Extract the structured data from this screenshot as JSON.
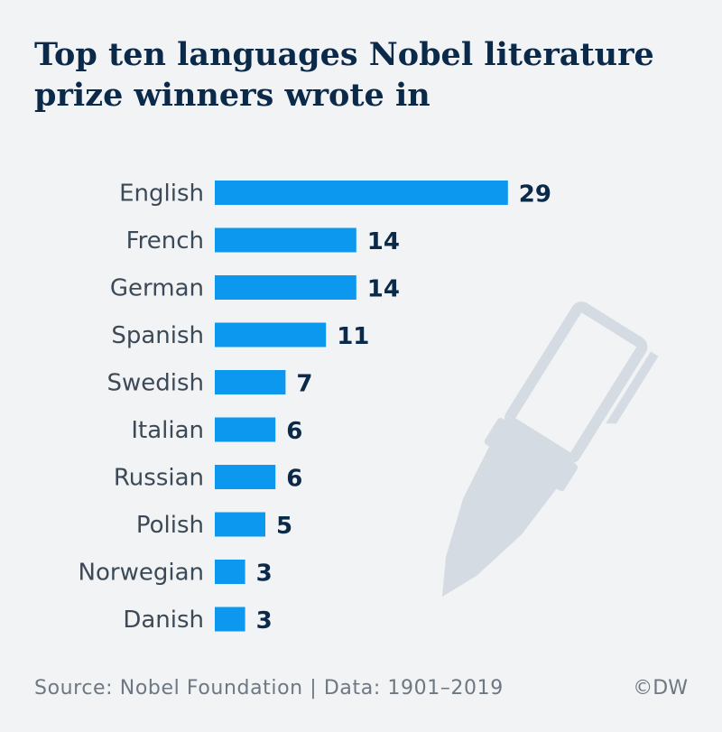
{
  "chart_data": {
    "type": "bar",
    "orientation": "horizontal",
    "title": "Top ten languages Nobel literature\nprize winners wrote in",
    "categories": [
      "English",
      "French",
      "German",
      "Spanish",
      "Swedish",
      "Italian",
      "Russian",
      "Polish",
      "Norwegian",
      "Danish"
    ],
    "values": [
      29,
      14,
      14,
      11,
      7,
      6,
      6,
      5,
      3,
      3
    ],
    "xlabel": "",
    "ylabel": "",
    "grid": false,
    "data_labels": true,
    "bar_color": "#0c98ee"
  },
  "footer": {
    "source": "Source: Nobel Foundation | Data: 1901–2019",
    "credit": "©DW"
  },
  "colors": {
    "background": "#f1f3f5",
    "title": "#0b2a4a",
    "illustration": "#d4dbe2"
  },
  "illustration": {
    "icon": "fountain-pen-icon"
  }
}
